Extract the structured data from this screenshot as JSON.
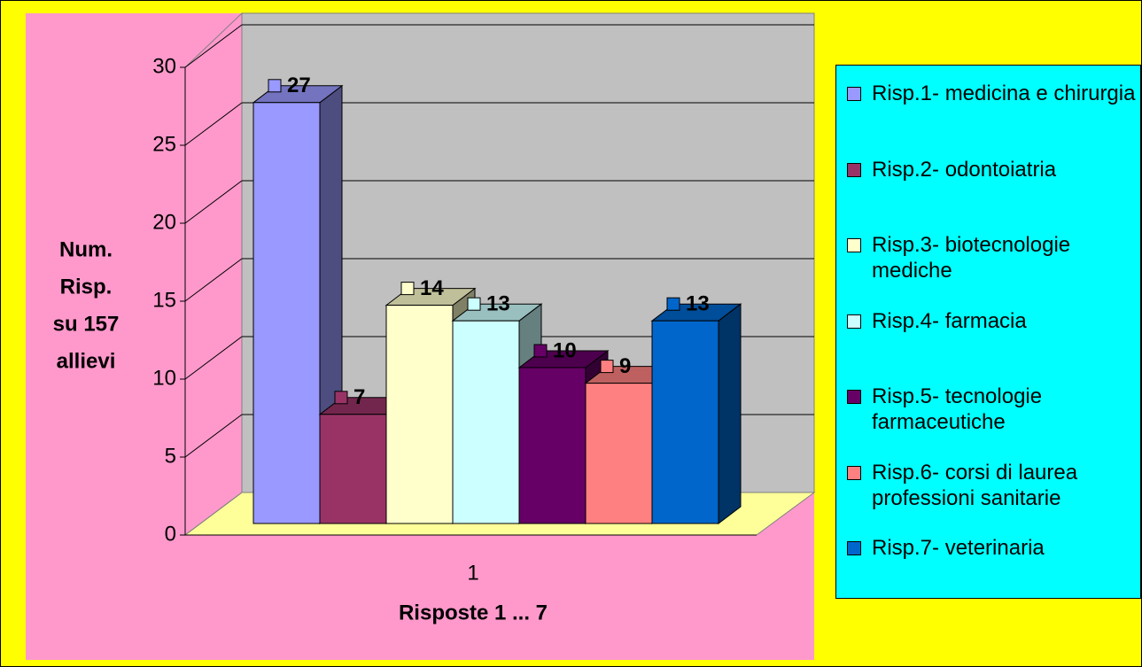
{
  "chart_data": {
    "type": "bar3d",
    "ylabel": [
      "Num.",
      "Risp.",
      "su 157",
      "allievi"
    ],
    "xlabel": "Risposte 1 ... 7",
    "categories": [
      "1"
    ],
    "ylim": [
      0,
      30
    ],
    "yticks": [
      0,
      5,
      10,
      15,
      20,
      25,
      30
    ],
    "grid": true,
    "legend": "right",
    "series": [
      {
        "name": "Risp.1- medicina e chirurgia",
        "color": "#9999ff",
        "values": [
          27
        ]
      },
      {
        "name": "Risp.2- odontoiatria",
        "color": "#993366",
        "values": [
          7
        ]
      },
      {
        "name": "Risp.3- biotecnologie mediche",
        "color": "#ffffcc",
        "values": [
          14
        ]
      },
      {
        "name": "Risp.4- farmacia",
        "color": "#ccffff",
        "values": [
          13
        ]
      },
      {
        "name": "Risp.5- tecnologie farmaceutiche",
        "color": "#660066",
        "values": [
          10
        ]
      },
      {
        "name": "Risp.6- corsi di laurea professioni sanitarie",
        "color": "#ff8080",
        "values": [
          9
        ]
      },
      {
        "name": "Risp.7- veterinaria",
        "color": "#0066cc",
        "values": [
          13
        ]
      }
    ]
  }
}
